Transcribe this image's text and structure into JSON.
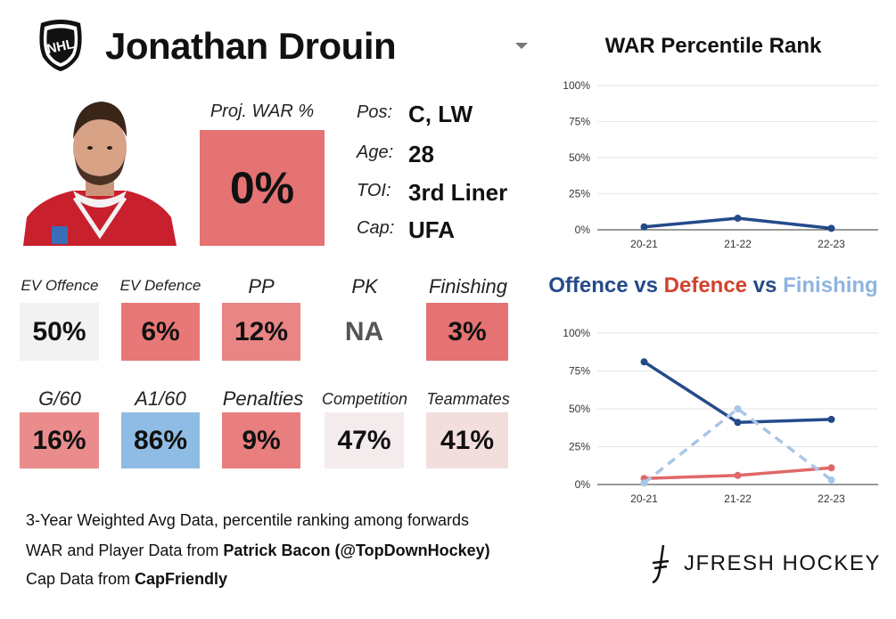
{
  "player": {
    "name": "Jonathan Drouin",
    "proj_war_label": "Proj. WAR %",
    "proj_war_value": "0%",
    "proj_war_color": "#e57373",
    "info": [
      {
        "label": "Pos:",
        "value": "C, LW"
      },
      {
        "label": "Age:",
        "value": "28"
      },
      {
        "label": "TOI:",
        "value": "3rd Liner"
      },
      {
        "label": "Cap:",
        "value": "UFA"
      }
    ]
  },
  "tiles_row1": [
    {
      "label": "EV Offence",
      "value": "50%",
      "color": "#f2f2f2"
    },
    {
      "label": "EV Defence",
      "value": "6%",
      "color": "#e87777"
    },
    {
      "label": "PP",
      "value": "12%",
      "color": "#e98585"
    },
    {
      "label": "PK",
      "value": "NA",
      "color": "#ffffff"
    },
    {
      "label": "Finishing",
      "value": "3%",
      "color": "#e57373"
    }
  ],
  "tiles_row2": [
    {
      "label": "G/60",
      "value": "16%",
      "color": "#ea8c8c"
    },
    {
      "label": "A1/60",
      "value": "86%",
      "color": "#8fbce4"
    },
    {
      "label": "Penalties",
      "value": "9%",
      "color": "#e87e7e"
    },
    {
      "label": "Competition",
      "value": "47%",
      "color": "#f4ecec"
    },
    {
      "label": "Teammates",
      "value": "41%",
      "color": "#f3dede"
    }
  ],
  "footer": {
    "line1": "3-Year Weighted Avg Data, percentile ranking among forwards",
    "line2_prefix": "WAR and Player Data from ",
    "line2_bold": "Patrick Bacon (@TopDownHockey)",
    "line3_prefix": "Cap Data from ",
    "line3_bold": "CapFriendly"
  },
  "brand": {
    "name": "JFRESH HOCKEY",
    "league_logo_text": "NHL"
  },
  "chart_data": [
    {
      "type": "line",
      "title": "WAR Percentile Rank",
      "categories": [
        "20-21",
        "21-22",
        "22-23"
      ],
      "series": [
        {
          "name": "WAR",
          "values": [
            2,
            8,
            1
          ],
          "color": "#244a8a"
        }
      ],
      "ylim": [
        0,
        100
      ],
      "yticks": [
        "0%",
        "25%",
        "50%",
        "75%",
        "100%"
      ],
      "xlabel": "",
      "ylabel": ""
    },
    {
      "type": "line",
      "title_parts": [
        {
          "text": "Offence",
          "color": "#244a8a"
        },
        {
          "text": " vs ",
          "color": "#244a8a"
        },
        {
          "text": "Defence",
          "color": "#d1422e"
        },
        {
          "text": " vs ",
          "color": "#244a8a"
        },
        {
          "text": "Finishing",
          "color": "#8fb4e0"
        }
      ],
      "categories": [
        "20-21",
        "21-22",
        "22-23"
      ],
      "series": [
        {
          "name": "Offence",
          "values": [
            81,
            41,
            43
          ],
          "color": "#244a8a",
          "dashed": false
        },
        {
          "name": "Defence",
          "values": [
            4,
            6,
            11
          ],
          "color": "#e06868",
          "dashed": false
        },
        {
          "name": "Finishing",
          "values": [
            1,
            50,
            3
          ],
          "color": "#a9c6e6",
          "dashed": true
        }
      ],
      "ylim": [
        0,
        100
      ],
      "yticks": [
        "0%",
        "25%",
        "50%",
        "75%",
        "100%"
      ],
      "xlabel": "",
      "ylabel": ""
    }
  ]
}
